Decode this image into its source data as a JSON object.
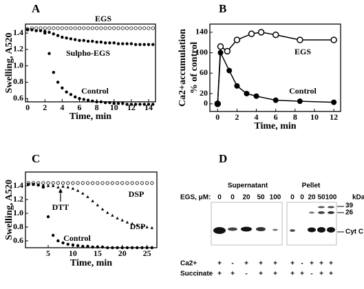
{
  "chart_data": [
    {
      "type": "scatter",
      "label": "A",
      "xlabel": "Time, min",
      "ylabel": "Swelling, A520",
      "xlim": [
        -0.25,
        14.8
      ],
      "xticks": [
        0,
        2,
        4,
        6,
        8,
        10,
        12,
        14
      ],
      "ylim": [
        0.56,
        1.51
      ],
      "yticks": [
        0.6,
        0.8,
        {
          "value": 1,
          "label": "1.0"
        },
        1.2,
        1.4
      ],
      "x": [
        0,
        0.5,
        1,
        1.5,
        2,
        2.5,
        3,
        3.5,
        4,
        4.5,
        5,
        5.5,
        6,
        6.5,
        7,
        7.5,
        8,
        8.5,
        9,
        9.5,
        10,
        10.5,
        11,
        11.5,
        12,
        12.5,
        13,
        13.5,
        14,
        14.5
      ],
      "series": [
        {
          "name": "EGS",
          "color": "#000000",
          "marker": "open-circle",
          "values": [
            1.45,
            1.46,
            1.46,
            1.46,
            1.46,
            1.46,
            1.46,
            1.46,
            1.46,
            1.46,
            1.46,
            1.46,
            1.46,
            1.46,
            1.46,
            1.46,
            1.46,
            1.46,
            1.46,
            1.46,
            1.46,
            1.46,
            1.46,
            1.46,
            1.46,
            1.46,
            1.46,
            1.46,
            1.46,
            1.46
          ]
        },
        {
          "name": "Sulpho-EGS",
          "color": "#000000",
          "marker": "dot",
          "values": [
            1.44,
            1.44,
            1.43,
            1.43,
            1.42,
            1.41,
            1.39,
            1.37,
            1.35,
            1.34,
            1.33,
            1.32,
            1.31,
            1.31,
            1.3,
            1.3,
            1.29,
            1.29,
            1.28,
            1.28,
            1.28,
            1.27,
            1.27,
            1.27,
            1.27,
            1.26,
            1.26,
            1.26,
            1.26,
            1.26
          ]
        },
        {
          "name": "Control",
          "color": "#000000",
          "marker": "dot",
          "values": [
            1.44,
            1.44,
            1.43,
            1.43,
            1.4,
            1.15,
            0.92,
            0.8,
            0.73,
            0.68,
            0.65,
            0.62,
            0.6,
            0.59,
            0.58,
            0.57,
            0.56,
            0.56,
            0.55,
            0.55,
            0.54,
            0.54,
            0.54,
            0.53,
            0.53,
            0.53,
            0.53,
            0.53,
            0.53,
            0.53
          ]
        }
      ]
    },
    {
      "type": "line",
      "label": "B",
      "xlabel": "Time, min",
      "ylabel": [
        "Ca2+accumulation",
        "% of control"
      ],
      "xlim": [
        -0.8,
        12.7
      ],
      "xticks": [
        0,
        2,
        4,
        6,
        8,
        10,
        12
      ],
      "ylim": [
        -15,
        156
      ],
      "yticks": [
        0,
        20,
        60,
        100,
        140
      ],
      "series": [
        {
          "name": "EGS",
          "color": "#000000",
          "marker": "open-circle",
          "x": [
            0,
            0.3,
            1,
            2,
            3.5,
            4.5,
            6,
            8.5,
            12
          ],
          "values": [
            0,
            112,
            103,
            125,
            137,
            140,
            135,
            125,
            125
          ]
        },
        {
          "name": "Control",
          "color": "#000000",
          "marker": "dot",
          "x": [
            0,
            0.3,
            1.2,
            2,
            3,
            4,
            6,
            8.5,
            12
          ],
          "values": [
            0,
            100,
            65,
            35,
            20,
            15,
            7,
            5,
            3
          ]
        }
      ]
    },
    {
      "type": "scatter",
      "label": "C",
      "xlabel": "Time, min",
      "ylabel": "Swelling, A520",
      "xlim": [
        0.4,
        27
      ],
      "xticks": [
        5,
        10,
        15,
        20,
        25
      ],
      "ylim": [
        0.5,
        1.6
      ],
      "yticks": [
        0.6,
        0.8,
        {
          "value": 1,
          "label": "1.0"
        },
        1.2,
        1.4
      ],
      "x": [
        1,
        2,
        3,
        4,
        5,
        6,
        7,
        8,
        9,
        10,
        11,
        12,
        13,
        14,
        15,
        16,
        17,
        18,
        19,
        20,
        21,
        22,
        23,
        24,
        25,
        26
      ],
      "annotations": [
        {
          "text": "DTT",
          "x": 7.5
        }
      ],
      "series": [
        {
          "name": "DSP",
          "color": "#000000",
          "marker": "open-circle",
          "values": [
            1.44,
            1.44,
            1.44,
            1.44,
            1.44,
            1.44,
            1.44,
            1.44,
            1.44,
            1.44,
            1.44,
            1.44,
            1.44,
            1.44,
            1.44,
            1.44,
            1.44,
            1.44,
            1.44,
            1.44,
            1.44,
            1.44,
            1.44,
            1.44,
            1.44,
            1.44
          ]
        },
        {
          "name": "DSP",
          "color": "#000000",
          "marker": "triangle",
          "values": [
            1.42,
            1.42,
            1.42,
            1.41,
            1.4,
            1.4,
            1.38,
            1.39,
            1.38,
            1.36,
            1.33,
            1.29,
            1.24,
            1.18,
            1.12,
            1.06,
            1.01,
            0.97,
            0.93,
            0.9,
            0.87,
            0.85,
            0.83,
            0.81,
            0.8,
            0.79
          ]
        },
        {
          "name": "Control",
          "color": "#000000",
          "marker": "dot",
          "values": [
            1.42,
            1.42,
            1.41,
            1.38,
            0.95,
            0.68,
            0.6,
            0.57,
            0.55,
            0.54,
            0.53,
            0.52,
            0.52,
            0.51,
            0.51,
            0.51,
            0.5,
            0.5,
            0.5,
            0.5,
            0.5,
            0.5,
            0.5,
            0.5,
            0.5,
            0.5
          ]
        }
      ]
    }
  ],
  "gel": {
    "label": "D",
    "supernatant": "Supernatant",
    "pellet": "Pellet",
    "egs_label": "EGS, μM:",
    "supernatant_lanes": [
      0,
      0,
      20,
      50,
      100
    ],
    "pellet_lanes": [
      0,
      0,
      20,
      50,
      100
    ],
    "kda": "kDa",
    "markers": [
      39,
      26
    ],
    "band": "Cyt C",
    "rows": [
      {
        "name": "Ca2+",
        "signs": [
          "+",
          "-",
          "+",
          "+",
          "+",
          "+",
          "-",
          "+",
          "+",
          "+"
        ]
      },
      {
        "name": "Succinate",
        "signs": [
          "+",
          "+",
          "-",
          "+",
          "+",
          "+",
          "+",
          "-",
          "+",
          "+"
        ]
      }
    ]
  }
}
